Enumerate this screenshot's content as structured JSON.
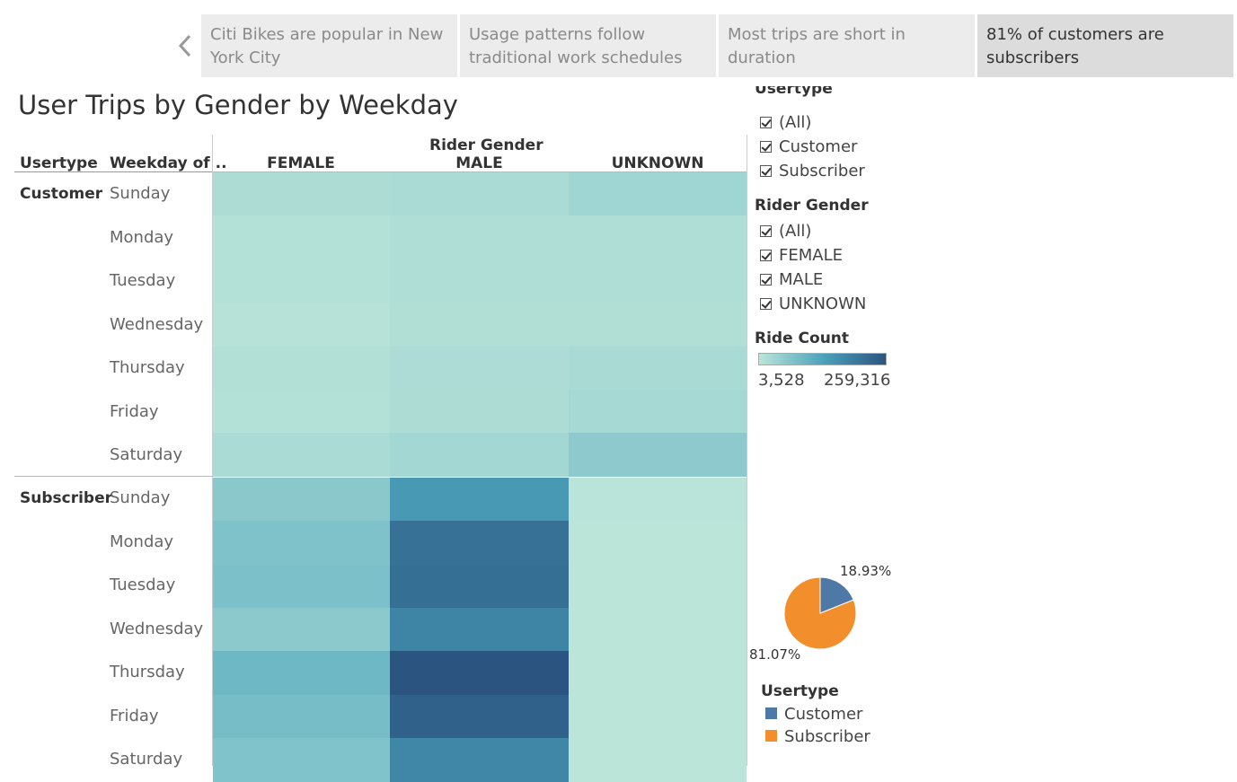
{
  "story_tabs": [
    {
      "label": "Citi Bikes are popular in New York City",
      "active": false
    },
    {
      "label": "Usage patterns follow traditional work schedules",
      "active": false
    },
    {
      "label": "Most trips are short in duration",
      "active": false
    },
    {
      "label": "81% of customers are subscribers",
      "active": true
    }
  ],
  "title": "User Trips by Gender by Weekday",
  "table_headers": {
    "usertype": "Usertype",
    "weekday": "Weekday of ..",
    "rider_gender": "Rider Gender",
    "columns": [
      "FEMALE",
      "MALE",
      "UNKNOWN"
    ]
  },
  "weekdays": [
    "Sunday",
    "Monday",
    "Tuesday",
    "Wednesday",
    "Thursday",
    "Friday",
    "Saturday"
  ],
  "groups": [
    "Customer",
    "Subscriber"
  ],
  "colors": {
    "heat_low": "#bbe5d9",
    "heat_high": "#2b5480",
    "pie_customer": "#4e79a7",
    "pie_subscriber": "#f28e2b"
  },
  "filters": {
    "usertype": {
      "title": "Usertype",
      "items": [
        "(All)",
        "Customer",
        "Subscriber"
      ]
    },
    "rider_gender": {
      "title": "Rider Gender",
      "items": [
        "(All)",
        "FEMALE",
        "MALE",
        "UNKNOWN"
      ]
    }
  },
  "ride_count_legend": {
    "title": "Ride Count",
    "min": "3,528",
    "max": "259,316"
  },
  "chart_data": [
    {
      "type": "heatmap",
      "title": "User Trips by Gender by Weekday",
      "x_categories": [
        "FEMALE",
        "MALE",
        "UNKNOWN"
      ],
      "y_categories": [
        "Sunday",
        "Monday",
        "Tuesday",
        "Wednesday",
        "Thursday",
        "Friday",
        "Saturday"
      ],
      "color_range": [
        3528,
        259316
      ],
      "series": [
        {
          "name": "Customer",
          "values": [
            [
              20000,
              22000,
              35000
            ],
            [
              12000,
              17000,
              17000
            ],
            [
              11000,
              17000,
              17000
            ],
            [
              9000,
              15000,
              15000
            ],
            [
              14000,
              21000,
              24000
            ],
            [
              13000,
              20000,
              26000
            ],
            [
              22000,
              31000,
              55000
            ]
          ]
        },
        {
          "name": "Subscriber",
          "values": [
            [
              60000,
              148000,
              5000
            ],
            [
              72000,
              212000,
              4000
            ],
            [
              75000,
              216000,
              4000
            ],
            [
              58000,
              182000,
              4000
            ],
            [
              92000,
              259316,
              4000
            ],
            [
              82000,
              238000,
              3600
            ],
            [
              70000,
              177000,
              3528
            ]
          ]
        }
      ]
    },
    {
      "type": "pie",
      "legend_title": "Usertype",
      "categories": [
        "Customer",
        "Subscriber"
      ],
      "values": [
        18.93,
        81.07
      ],
      "labels": [
        "18.93%",
        "81.07%"
      ]
    }
  ]
}
